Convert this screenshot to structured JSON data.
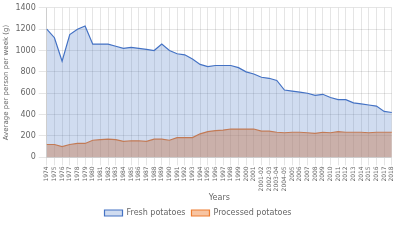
{
  "chart_data": {
    "type": "area",
    "categories": [
      "1974",
      "1975",
      "1976",
      "1977",
      "1978",
      "1979",
      "1980",
      "1981",
      "1982",
      "1983",
      "1984",
      "1985",
      "1986",
      "1987",
      "1988",
      "1989",
      "1990",
      "1991",
      "1992",
      "1993",
      "1994",
      "1995",
      "1996",
      "1997",
      "1998",
      "1999",
      "2000",
      "2001",
      "2001-02",
      "2002-03",
      "2003-04",
      "2004-05",
      "2005",
      "2006",
      "2007",
      "2008",
      "2009",
      "2010",
      "2011",
      "2012",
      "2013",
      "2014",
      "2015",
      "2016",
      "2017",
      "2018"
    ],
    "series": [
      {
        "name": "Fresh potatoes",
        "color": "#4472C4",
        "values": [
          1200,
          1120,
          900,
          1150,
          1200,
          1230,
          1060,
          1060,
          1060,
          1040,
          1020,
          1030,
          1020,
          1010,
          1000,
          1060,
          1000,
          970,
          960,
          920,
          870,
          850,
          860,
          860,
          860,
          840,
          800,
          780,
          750,
          740,
          720,
          630,
          620,
          610,
          600,
          580,
          590,
          560,
          540,
          540,
          510,
          500,
          490,
          480,
          430,
          420
        ]
      },
      {
        "name": "Processed potatoes",
        "color": "#ED7D31",
        "values": [
          120,
          120,
          100,
          120,
          130,
          130,
          160,
          165,
          170,
          165,
          150,
          155,
          155,
          150,
          170,
          170,
          160,
          185,
          185,
          185,
          220,
          240,
          250,
          255,
          265,
          265,
          265,
          265,
          245,
          245,
          235,
          230,
          235,
          235,
          230,
          225,
          235,
          230,
          240,
          235,
          235,
          235,
          230,
          235,
          235,
          235
        ]
      }
    ],
    "xlabel": "Years",
    "ylabel": "Average per person per week (g)",
    "ylim": [
      0,
      1400
    ],
    "yticks": [
      0,
      200,
      400,
      600,
      800,
      1000,
      1200,
      1400
    ],
    "grid": true,
    "legend": "bottom"
  }
}
